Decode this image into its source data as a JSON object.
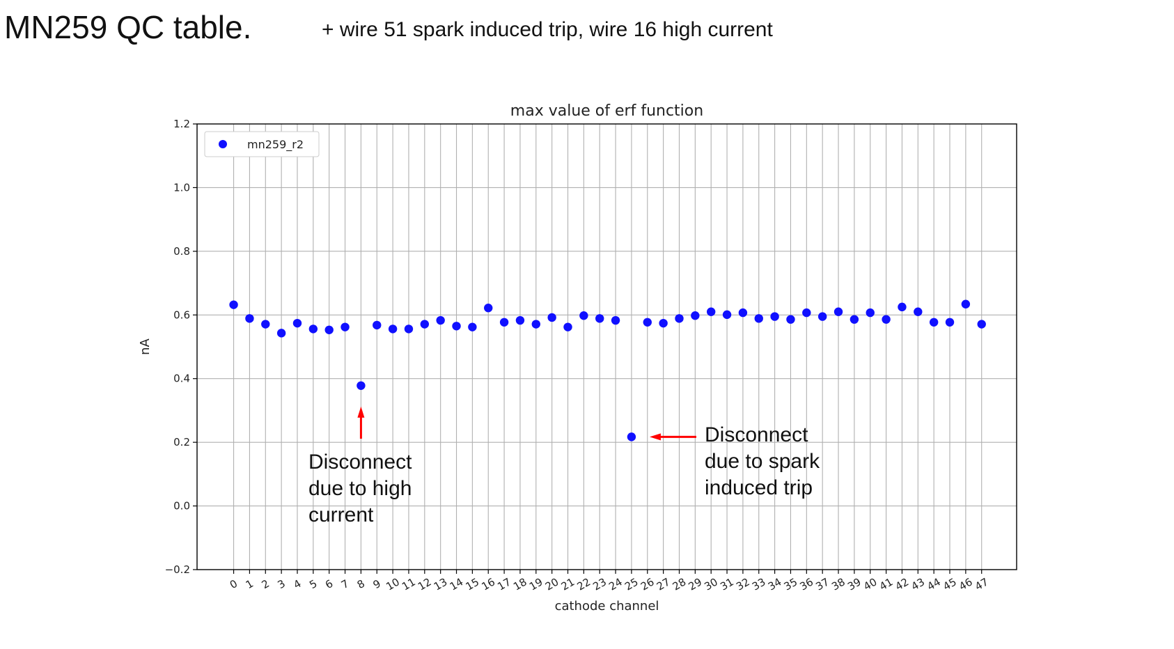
{
  "slide": {
    "title": "MN259 QC table.",
    "subtitle": "+ wire 51 spark induced trip, wire 16 high current"
  },
  "chart_data": {
    "type": "scatter",
    "title": "max value of erf function",
    "xlabel": "cathode channel",
    "ylabel": "nA",
    "x": [
      0,
      1,
      2,
      3,
      4,
      5,
      6,
      7,
      8,
      9,
      10,
      11,
      12,
      13,
      14,
      15,
      16,
      17,
      18,
      19,
      20,
      21,
      22,
      23,
      24,
      25,
      26,
      27,
      28,
      29,
      30,
      31,
      32,
      33,
      34,
      35,
      36,
      37,
      38,
      39,
      40,
      41,
      42,
      43,
      44,
      45,
      46,
      47
    ],
    "xlim": [
      -2.3,
      49.2
    ],
    "ylim": [
      -0.2,
      1.2
    ],
    "yticks": [
      -0.2,
      0.0,
      0.2,
      0.4,
      0.6,
      0.8,
      1.0,
      1.2
    ],
    "ytick_labels": [
      "−0.2",
      "0.0",
      "0.2",
      "0.4",
      "0.6",
      "0.8",
      "1.0",
      "1.2"
    ],
    "grid": true,
    "legend_position": "top-left",
    "series": [
      {
        "name": "mn259_r2",
        "color": "#1010ff",
        "values": [
          0.632,
          0.589,
          0.571,
          0.543,
          0.574,
          0.556,
          0.553,
          0.562,
          0.378,
          0.568,
          0.556,
          0.556,
          0.571,
          0.583,
          0.565,
          0.562,
          0.622,
          0.577,
          0.583,
          0.571,
          0.592,
          0.562,
          0.598,
          0.589,
          0.583,
          0.217,
          0.577,
          0.574,
          0.589,
          0.598,
          0.61,
          0.601,
          0.607,
          0.589,
          0.595,
          0.586,
          0.607,
          0.595,
          0.61,
          0.586,
          0.607,
          0.586,
          0.625,
          0.61,
          0.577,
          0.577,
          0.634,
          0.571
        ]
      }
    ],
    "annotations": [
      {
        "text": "Disconnect\ndue to high\ncurrent",
        "points_to_channel": 8,
        "color": "#ff0000"
      },
      {
        "text": "Disconnect\ndue to spark\ninduced trip",
        "points_to_channel": 25,
        "color": "#ff0000"
      }
    ]
  }
}
